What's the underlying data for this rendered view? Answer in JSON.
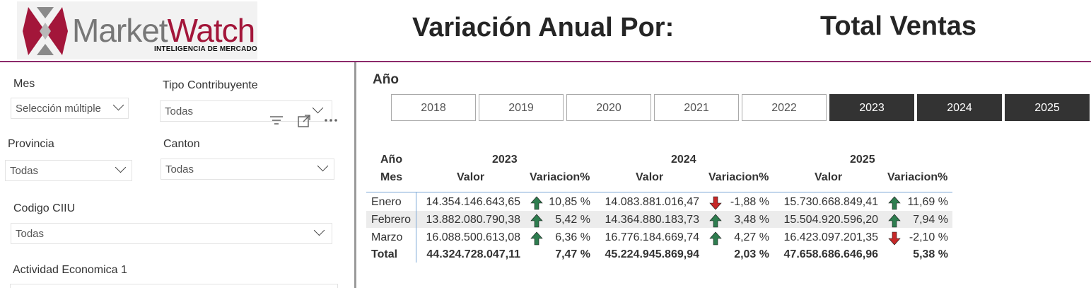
{
  "header": {
    "logo_main": "Market",
    "logo_accent": "Watch",
    "logo_sub": "INTELIGENCIA DE MERCADO",
    "title": "Variación Anual Por:",
    "measure": "Total Ventas"
  },
  "slicers": {
    "mes": {
      "label": "Mes",
      "value": "Selección múltiple"
    },
    "tipo": {
      "label": "Tipo Contribuyente",
      "value": "Todas"
    },
    "provincia": {
      "label": "Provincia",
      "value": "Todas"
    },
    "canton": {
      "label": "Canton",
      "value": "Todas"
    },
    "ciiu": {
      "label": "Codigo CIIU",
      "value": "Todas"
    },
    "actividad": {
      "label": "Actividad Economica 1"
    }
  },
  "year_slicer": {
    "label": "Año",
    "years": [
      "2018",
      "2019",
      "2020",
      "2021",
      "2022",
      "2023",
      "2024",
      "2025"
    ],
    "selected": [
      "2023",
      "2024",
      "2025"
    ]
  },
  "table": {
    "row_header_1": "Año",
    "row_header_2": "Mes",
    "years": [
      "2023",
      "2024",
      "2025"
    ],
    "col_valor": "Valor",
    "col_var": "Variacion%",
    "rows": [
      {
        "mes": "Enero",
        "vals": [
          "14.354.146.643,65",
          "14.083.881.016,47",
          "15.730.668.849,41"
        ],
        "vars": [
          "10,85 %",
          "-1,88 %",
          "11,69 %"
        ],
        "dirs": [
          "up",
          "down",
          "up"
        ]
      },
      {
        "mes": "Febrero",
        "vals": [
          "13.882.080.790,38",
          "14.364.880.183,73",
          "15.504.920.596,20"
        ],
        "vars": [
          "5,42 %",
          "3,48 %",
          "7,94 %"
        ],
        "dirs": [
          "up",
          "up",
          "up"
        ]
      },
      {
        "mes": "Marzo",
        "vals": [
          "16.088.500.613,08",
          "16.776.184.669,74",
          "16.423.097.201,35"
        ],
        "vars": [
          "6,36 %",
          "4,27 %",
          "-2,10 %"
        ],
        "dirs": [
          "up",
          "up",
          "down"
        ]
      }
    ],
    "total": {
      "mes": "Total",
      "vals": [
        "44.324.728.047,11",
        "45.224.945.869,94",
        "47.658.686.646,96"
      ],
      "vars": [
        "7,47 %",
        "2,03 %",
        "5,38 %"
      ]
    }
  },
  "colors": {
    "up": "#2e7d4f",
    "down": "#c62828",
    "accent": "#8c2a6a"
  }
}
